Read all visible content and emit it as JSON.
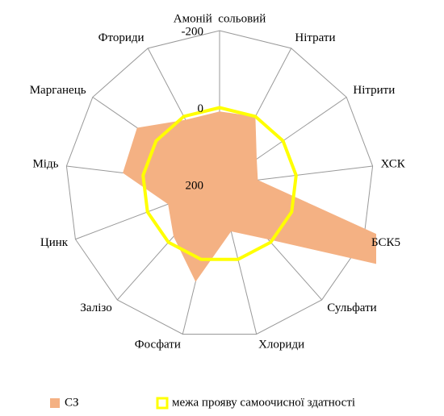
{
  "chart_data": {
    "type": "radar",
    "categories": [
      "Амоній  сольовий",
      "Нітрати",
      "Нітрити",
      "ХСК",
      "БСК5",
      "Сульфати",
      "Хлориди",
      "Фосфати",
      "Залізо",
      "Цинк",
      "Мідь",
      "Марганець",
      "Фториди"
    ],
    "series": [
      {
        "name": "СЗ",
        "color": "#f4b183",
        "style": "filled",
        "values": [
          10,
          0,
          83,
          100,
          -600,
          10,
          75,
          -60,
          20,
          57,
          -53,
          -60,
          10
        ]
      },
      {
        "name": "межа прояву самоочисної здатності",
        "color": "#ffff00",
        "style": "line",
        "values": [
          0,
          0,
          0,
          0,
          0,
          0,
          0,
          0,
          0,
          0,
          0,
          0,
          0
        ]
      }
    ],
    "ylim": [
      200,
      -200
    ],
    "yticks": [
      200,
      0,
      -200
    ],
    "grid": true,
    "legend": "bottom"
  }
}
